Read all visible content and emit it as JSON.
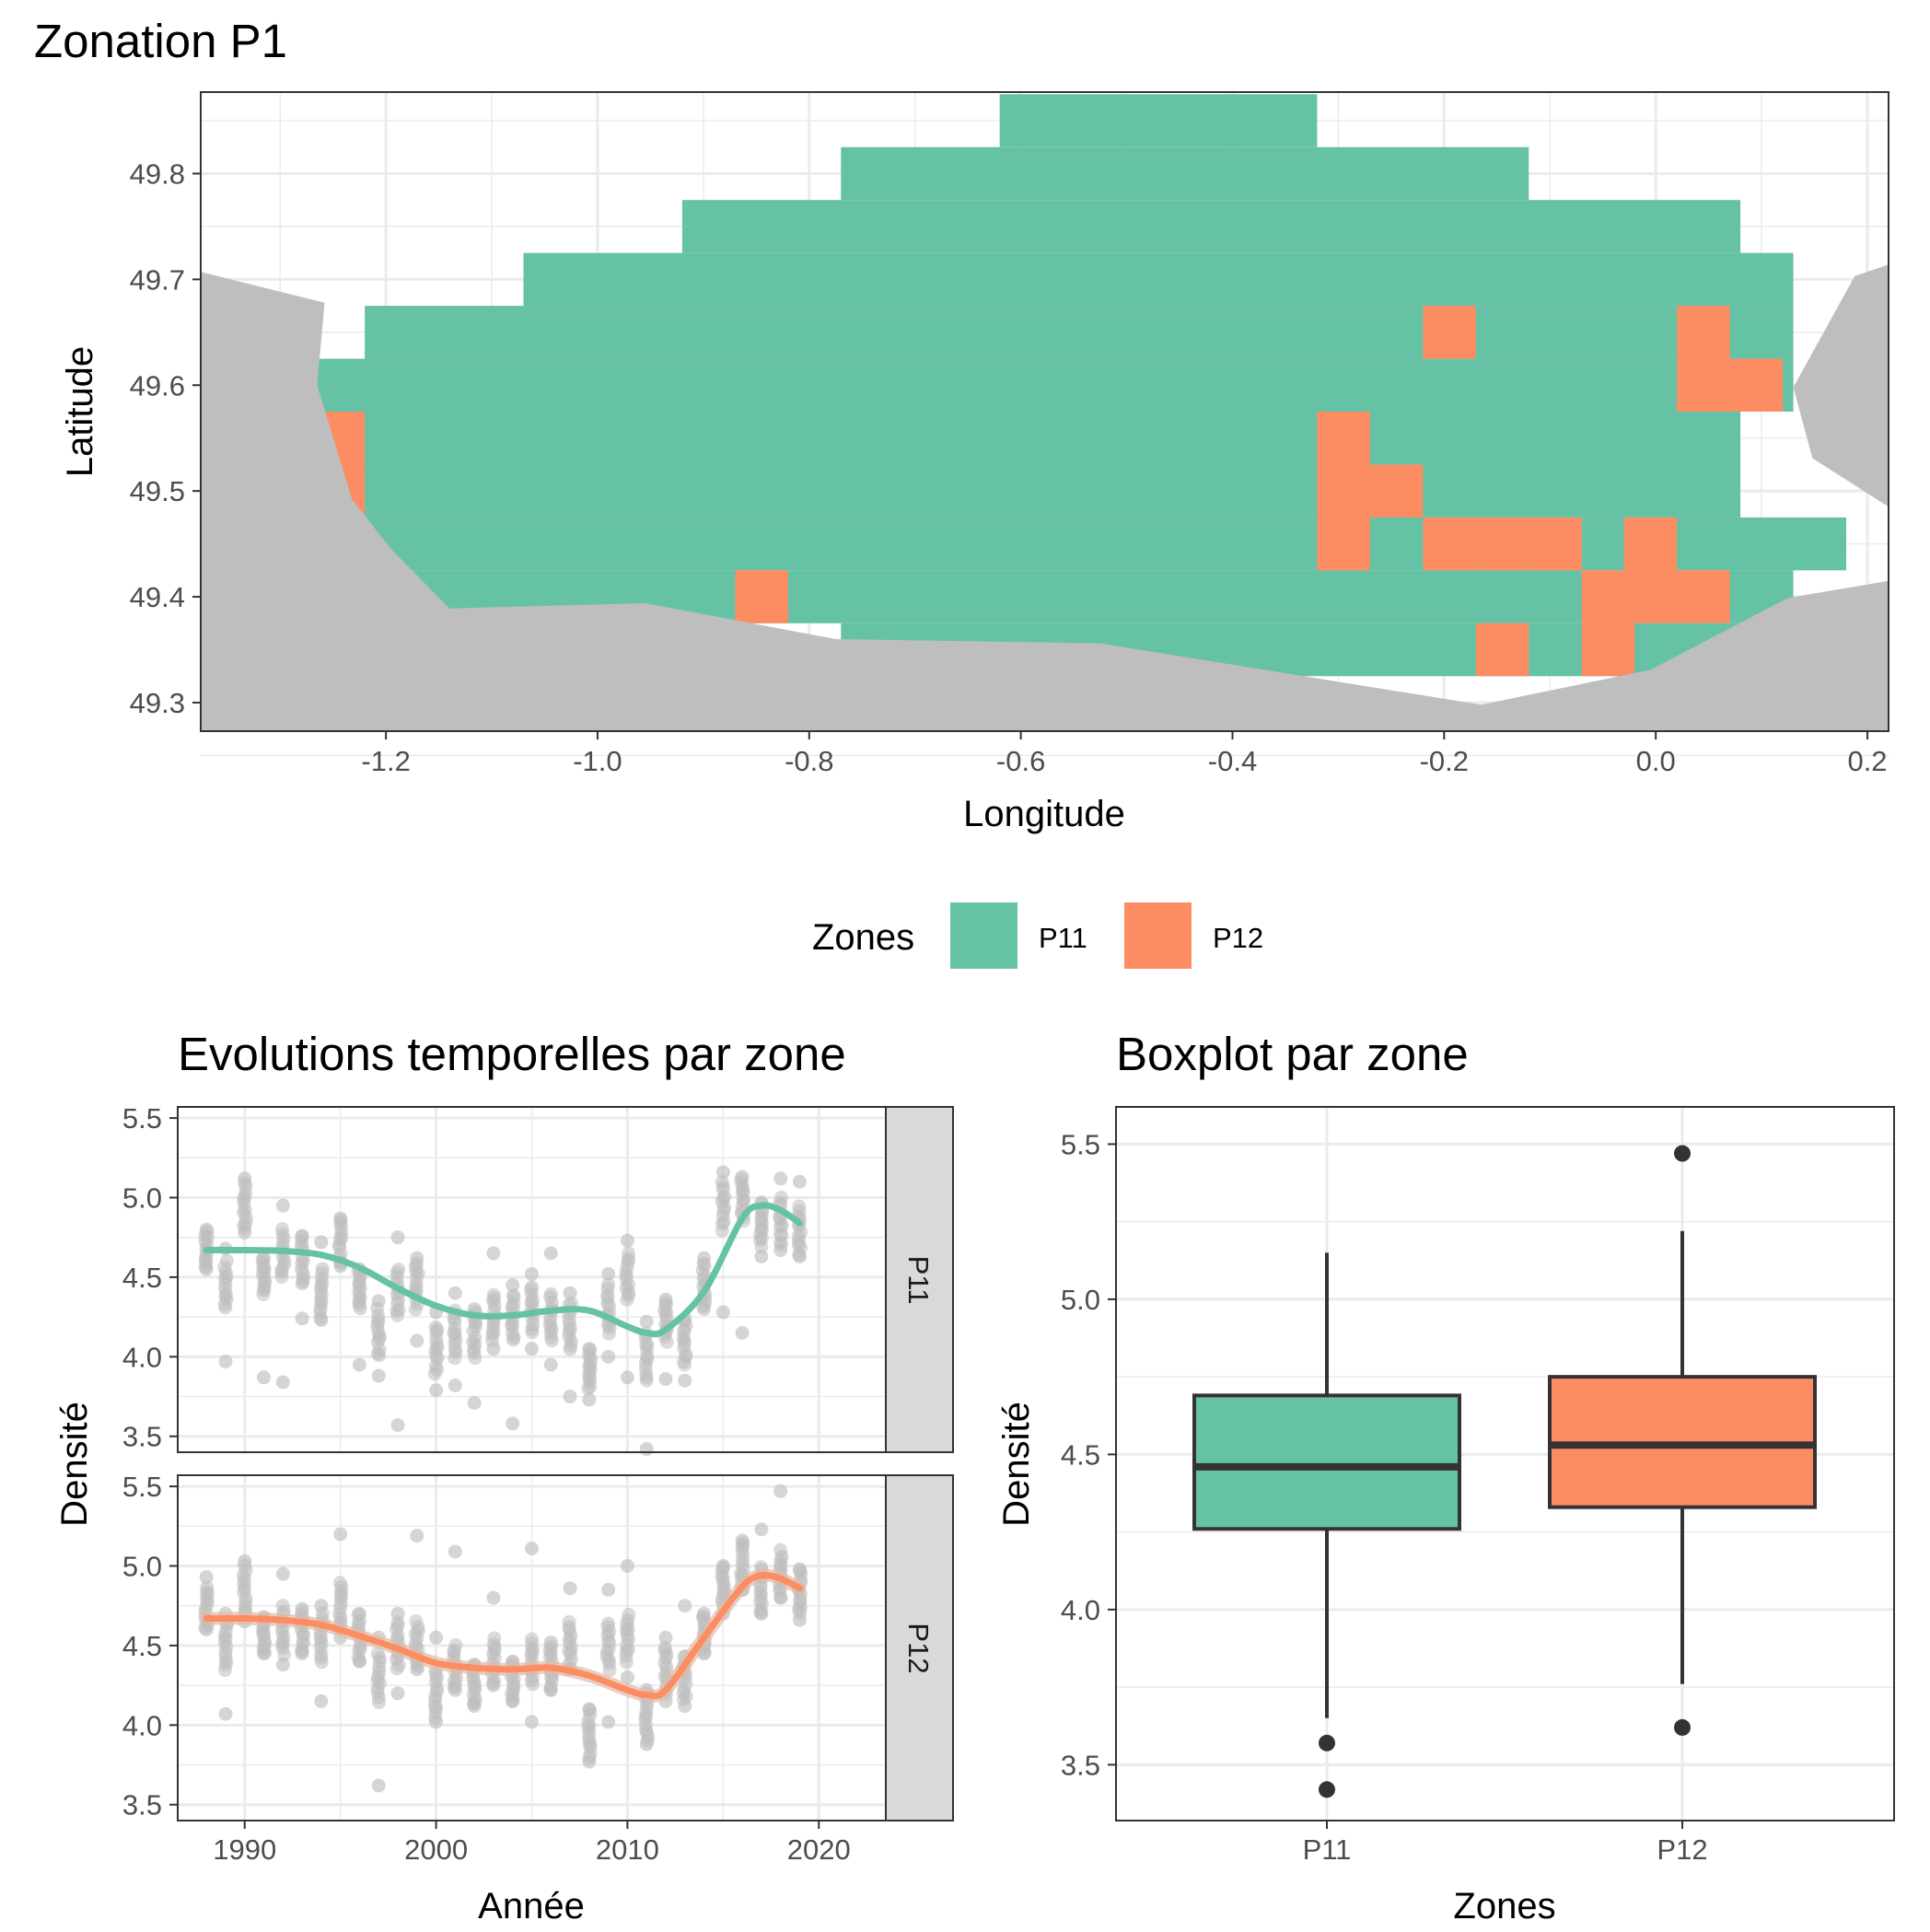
{
  "colors": {
    "P11": "#66C2A5",
    "P12": "#FC8D62",
    "land": "#BEBEBE",
    "points": "#BEBEBE",
    "grid": "#EBEBEB",
    "strip_bg": "#D9D9D9",
    "box_line": "#333333"
  },
  "map": {
    "title": "Zonation P1",
    "xlabel": "Longitude",
    "ylabel": "Latitude",
    "x_ticks": [
      "-1.2",
      "-1.0",
      "-0.8",
      "-0.6",
      "-0.4",
      "-0.2",
      "0.0",
      "0.2"
    ],
    "y_ticks": [
      "49.3",
      "49.4",
      "49.5",
      "49.6",
      "49.7",
      "49.8"
    ]
  },
  "legend": {
    "title": "Zones",
    "items": [
      {
        "label": "P11",
        "color": "#66C2A5"
      },
      {
        "label": "P12",
        "color": "#FC8D62"
      }
    ]
  },
  "ts": {
    "title": "Evolutions temporelles par zone",
    "xlabel": "Année",
    "ylabel": "Densité",
    "x_ticks": [
      "1990",
      "2000",
      "2010",
      "2020"
    ],
    "y_ticks": [
      "3.5",
      "4.0",
      "4.5",
      "5.0",
      "5.5"
    ],
    "panels": [
      "P11",
      "P12"
    ]
  },
  "box": {
    "title": "Boxplot par zone",
    "xlabel": "Zones",
    "ylabel": "Densité",
    "x_ticks": [
      "P11",
      "P12"
    ],
    "y_ticks": [
      "3.5",
      "4.0",
      "4.5",
      "5.0",
      "5.5"
    ]
  },
  "chart_data": [
    {
      "type": "heatmap",
      "title": "Zonation P1",
      "xlabel": "Longitude",
      "ylabel": "Latitude",
      "xlim": [
        -1.375,
        0.22
      ],
      "ylim": [
        49.273,
        49.877
      ],
      "cell_size_deg": [
        0.05,
        0.05
      ],
      "legend_title": "Zones",
      "categories": [
        "P11",
        "P12"
      ],
      "grid_origin": [
        -1.27,
        49.325
      ],
      "rows_P11": [
        {
          "lat": 49.85,
          "lon_min": -0.62,
          "lon_max": -0.32
        },
        {
          "lat": 49.8,
          "lon_min": -0.77,
          "lon_max": -0.12
        },
        {
          "lat": 49.75,
          "lon_min": -0.92,
          "lon_max": 0.08
        },
        {
          "lat": 49.7,
          "lon_min": -1.07,
          "lon_max": 0.13
        },
        {
          "lat": 49.65,
          "lon_min": -1.22,
          "lon_max": 0.13
        },
        {
          "lat": 49.6,
          "lon_min": -1.27,
          "lon_max": 0.13
        },
        {
          "lat": 49.55,
          "lon_min": -1.27,
          "lon_max": 0.08
        },
        {
          "lat": 49.5,
          "lon_min": -1.27,
          "lon_max": 0.08
        },
        {
          "lat": 49.45,
          "lon_min": -1.27,
          "lon_max": 0.18
        },
        {
          "lat": 49.4,
          "lon_min": -1.27,
          "lon_max": 0.13
        },
        {
          "lat": 49.35,
          "lon_min": -0.77,
          "lon_max": 0.08
        }
      ],
      "cells_P12": [
        [
          -0.195,
          49.65
        ],
        [
          0.045,
          49.65
        ],
        [
          0.045,
          49.6
        ],
        [
          0.095,
          49.6
        ],
        [
          -1.245,
          49.55
        ],
        [
          -1.245,
          49.5
        ],
        [
          -0.295,
          49.55
        ],
        [
          -0.295,
          49.5
        ],
        [
          -0.245,
          49.5
        ],
        [
          -0.295,
          49.45
        ],
        [
          -0.195,
          49.45
        ],
        [
          -0.145,
          49.45
        ],
        [
          -0.095,
          49.45
        ],
        [
          -0.005,
          49.45
        ],
        [
          -0.845,
          49.4
        ],
        [
          -0.045,
          49.4
        ],
        [
          -0.005,
          49.4
        ],
        [
          0.045,
          49.4
        ],
        [
          -0.145,
          49.35
        ],
        [
          -0.045,
          49.35
        ]
      ]
    },
    {
      "type": "scatter",
      "title": "Evolutions temporelles par zone",
      "xlabel": "Année",
      "ylabel": "Densité",
      "xlim": [
        1986.5,
        2023.5
      ],
      "ylim": [
        3.4,
        5.57
      ],
      "facets": [
        "P11",
        "P12"
      ],
      "series": [
        {
          "name": "P11",
          "smooth": [
            [
              1988,
              4.67
            ],
            [
              1990,
              4.67
            ],
            [
              1992,
              4.665
            ],
            [
              1994,
              4.64
            ],
            [
              1996,
              4.56
            ],
            [
              1998,
              4.43
            ],
            [
              2000,
              4.32
            ],
            [
              2002,
              4.26
            ],
            [
              2004,
              4.26
            ],
            [
              2006,
              4.29
            ],
            [
              2008,
              4.29
            ],
            [
              2010,
              4.19
            ],
            [
              2011,
              4.15
            ],
            [
              2012,
              4.17
            ],
            [
              2014,
              4.41
            ],
            [
              2016,
              4.87
            ],
            [
              2017,
              4.95
            ],
            [
              2018,
              4.92
            ],
            [
              2019,
              4.84
            ]
          ],
          "points_by_year": [
            {
              "year": 1988,
              "mean": 4.68,
              "min": 4.55,
              "max": 4.8
            },
            {
              "year": 1989,
              "mean": 4.45,
              "min": 3.97,
              "max": 4.68
            },
            {
              "year": 1990,
              "mean": 4.95,
              "min": 4.78,
              "max": 5.12
            },
            {
              "year": 1991,
              "mean": 4.55,
              "min": 3.87,
              "max": 4.62
            },
            {
              "year": 1992,
              "mean": 4.65,
              "min": 3.84,
              "max": 4.95
            },
            {
              "year": 1993,
              "mean": 4.6,
              "min": 4.24,
              "max": 4.76
            },
            {
              "year": 1994,
              "mean": 4.4,
              "min": 4.23,
              "max": 4.72
            },
            {
              "year": 1995,
              "mean": 4.72,
              "min": 4.57,
              "max": 4.87
            },
            {
              "year": 1996,
              "mean": 4.45,
              "min": 3.95,
              "max": 4.55
            },
            {
              "year": 1997,
              "mean": 4.15,
              "min": 3.88,
              "max": 4.35
            },
            {
              "year": 1998,
              "mean": 4.4,
              "min": 3.57,
              "max": 4.75
            },
            {
              "year": 1999,
              "mean": 4.45,
              "min": 4.1,
              "max": 4.62
            },
            {
              "year": 2000,
              "mean": 4.05,
              "min": 3.79,
              "max": 4.28
            },
            {
              "year": 2001,
              "mean": 4.15,
              "min": 3.82,
              "max": 4.4
            },
            {
              "year": 2002,
              "mean": 4.15,
              "min": 3.71,
              "max": 4.3
            },
            {
              "year": 2003,
              "mean": 4.25,
              "min": 4.05,
              "max": 4.65
            },
            {
              "year": 2004,
              "mean": 4.25,
              "min": 3.58,
              "max": 4.45
            },
            {
              "year": 2005,
              "mean": 4.3,
              "min": 4.05,
              "max": 4.52
            },
            {
              "year": 2006,
              "mean": 4.25,
              "min": 3.95,
              "max": 4.65
            },
            {
              "year": 2007,
              "mean": 4.2,
              "min": 3.75,
              "max": 4.4
            },
            {
              "year": 2008,
              "mean": 3.95,
              "min": 3.73,
              "max": 4.05
            },
            {
              "year": 2009,
              "mean": 4.3,
              "min": 4.0,
              "max": 4.52
            },
            {
              "year": 2010,
              "mean": 4.5,
              "min": 3.87,
              "max": 4.73
            },
            {
              "year": 2011,
              "mean": 4.0,
              "min": 3.42,
              "max": 4.22
            },
            {
              "year": 2012,
              "mean": 4.25,
              "min": 3.86,
              "max": 4.36
            },
            {
              "year": 2013,
              "mean": 4.1,
              "min": 3.85,
              "max": 4.24
            },
            {
              "year": 2014,
              "mean": 4.45,
              "min": 4.3,
              "max": 4.62
            },
            {
              "year": 2015,
              "mean": 4.95,
              "min": 4.28,
              "max": 5.16
            },
            {
              "year": 2016,
              "mean": 5.0,
              "min": 4.15,
              "max": 5.13
            },
            {
              "year": 2017,
              "mean": 4.85,
              "min": 4.63,
              "max": 4.97
            },
            {
              "year": 2018,
              "mean": 4.85,
              "min": 4.67,
              "max": 5.12
            },
            {
              "year": 2019,
              "mean": 4.8,
              "min": 4.63,
              "max": 5.1
            }
          ]
        },
        {
          "name": "P12",
          "smooth": [
            [
              1988,
              4.67
            ],
            [
              1990,
              4.67
            ],
            [
              1992,
              4.66
            ],
            [
              1994,
              4.63
            ],
            [
              1996,
              4.56
            ],
            [
              1998,
              4.48
            ],
            [
              2000,
              4.39
            ],
            [
              2002,
              4.36
            ],
            [
              2004,
              4.35
            ],
            [
              2006,
              4.36
            ],
            [
              2008,
              4.31
            ],
            [
              2010,
              4.22
            ],
            [
              2011,
              4.19
            ],
            [
              2012,
              4.22
            ],
            [
              2014,
              4.55
            ],
            [
              2016,
              4.87
            ],
            [
              2017,
              4.94
            ],
            [
              2018,
              4.92
            ],
            [
              2019,
              4.86
            ]
          ],
          "points_by_year": [
            {
              "year": 1988,
              "mean": 4.72,
              "min": 4.6,
              "max": 4.93
            },
            {
              "year": 1989,
              "mean": 4.5,
              "min": 4.07,
              "max": 4.7
            },
            {
              "year": 1990,
              "mean": 4.85,
              "min": 4.65,
              "max": 5.03
            },
            {
              "year": 1991,
              "mean": 4.55,
              "min": 4.45,
              "max": 4.68
            },
            {
              "year": 1992,
              "mean": 4.6,
              "min": 4.38,
              "max": 4.95
            },
            {
              "year": 1993,
              "mean": 4.6,
              "min": 4.45,
              "max": 4.73
            },
            {
              "year": 1994,
              "mean": 4.55,
              "min": 4.15,
              "max": 4.75
            },
            {
              "year": 1995,
              "mean": 4.75,
              "min": 4.55,
              "max": 5.2
            },
            {
              "year": 1996,
              "mean": 4.55,
              "min": 4.4,
              "max": 4.7
            },
            {
              "year": 1997,
              "mean": 4.3,
              "min": 3.62,
              "max": 4.55
            },
            {
              "year": 1998,
              "mean": 4.5,
              "min": 4.2,
              "max": 4.7
            },
            {
              "year": 1999,
              "mean": 4.5,
              "min": 4.35,
              "max": 5.19
            },
            {
              "year": 2000,
              "mean": 4.2,
              "min": 4.02,
              "max": 4.55
            },
            {
              "year": 2001,
              "mean": 4.35,
              "min": 4.22,
              "max": 5.09
            },
            {
              "year": 2002,
              "mean": 4.25,
              "min": 4.12,
              "max": 4.38
            },
            {
              "year": 2003,
              "mean": 4.4,
              "min": 4.25,
              "max": 4.8
            },
            {
              "year": 2004,
              "mean": 4.25,
              "min": 4.15,
              "max": 4.4
            },
            {
              "year": 2005,
              "mean": 4.4,
              "min": 4.02,
              "max": 5.11
            },
            {
              "year": 2006,
              "mean": 4.35,
              "min": 4.22,
              "max": 4.52
            },
            {
              "year": 2007,
              "mean": 4.5,
              "min": 4.35,
              "max": 4.86
            },
            {
              "year": 2008,
              "mean": 3.95,
              "min": 3.77,
              "max": 4.1
            },
            {
              "year": 2009,
              "mean": 4.5,
              "min": 4.02,
              "max": 4.85
            },
            {
              "year": 2010,
              "mean": 4.55,
              "min": 4.3,
              "max": 5.0
            },
            {
              "year": 2011,
              "mean": 4.05,
              "min": 3.88,
              "max": 4.22
            },
            {
              "year": 2012,
              "mean": 4.35,
              "min": 4.15,
              "max": 4.55
            },
            {
              "year": 2013,
              "mean": 4.3,
              "min": 4.12,
              "max": 4.75
            },
            {
              "year": 2014,
              "mean": 4.55,
              "min": 4.45,
              "max": 4.7
            },
            {
              "year": 2015,
              "mean": 4.9,
              "min": 4.7,
              "max": 5.0
            },
            {
              "year": 2016,
              "mean": 5.0,
              "min": 4.85,
              "max": 5.16
            },
            {
              "year": 2017,
              "mean": 4.85,
              "min": 4.7,
              "max": 5.23
            },
            {
              "year": 2018,
              "mean": 4.95,
              "min": 4.8,
              "max": 5.47
            },
            {
              "year": 2019,
              "mean": 4.85,
              "min": 4.66,
              "max": 4.98
            }
          ]
        }
      ]
    },
    {
      "type": "bar",
      "subtype": "boxplot",
      "title": "Boxplot par zone",
      "xlabel": "Zones",
      "ylabel": "Densité",
      "ylim": [
        3.32,
        5.62
      ],
      "categories": [
        "P11",
        "P12"
      ],
      "boxes": [
        {
          "name": "P11",
          "whisker_low": 3.65,
          "q1": 4.26,
          "median": 4.46,
          "q3": 4.69,
          "whisker_high": 5.15,
          "outliers": [
            3.57,
            3.42
          ]
        },
        {
          "name": "P12",
          "whisker_low": 3.76,
          "q1": 4.33,
          "median": 4.53,
          "q3": 4.75,
          "whisker_high": 5.22,
          "outliers": [
            5.47,
            3.62
          ]
        }
      ]
    }
  ]
}
